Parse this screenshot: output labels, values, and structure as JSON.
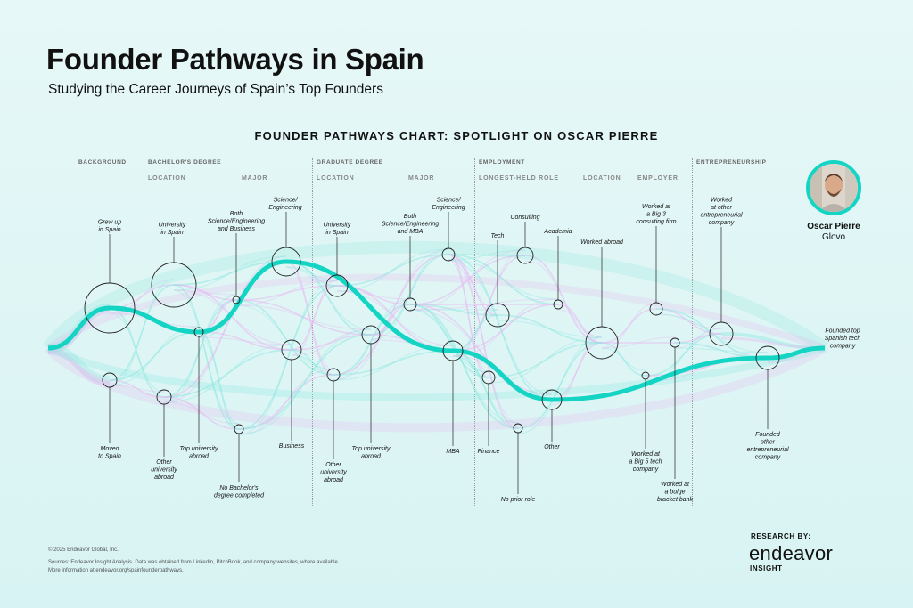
{
  "header": {
    "title": "Founder Pathways in Spain",
    "subtitle": "Studying the Career Journeys of Spain’s Top Founders"
  },
  "chart_data": {
    "type": "sankey-flow",
    "title": "FOUNDER PATHWAYS CHART: SPOTLIGHT ON OSCAR PIERRE",
    "sections": [
      {
        "label": "BACKGROUND",
        "subs": []
      },
      {
        "label": "BACHELOR'S DEGREE",
        "subs": [
          "LOCATION",
          "MAJOR"
        ]
      },
      {
        "label": "GRADUATE DEGREE",
        "subs": [
          "LOCATION",
          "MAJOR"
        ]
      },
      {
        "label": "EMPLOYMENT",
        "subs": [
          "LONGEST-HELD ROLE",
          "LOCATION",
          "EMPLOYER"
        ]
      },
      {
        "label": "ENTREPRENEURSHIP",
        "subs": []
      }
    ],
    "nodes": [
      {
        "id": "grew-up-spain",
        "lines": [
          "Grew up",
          "in Spain"
        ]
      },
      {
        "id": "moved-spain",
        "lines": [
          "Moved",
          "to Spain"
        ]
      },
      {
        "id": "bach-univ-spain",
        "lines": [
          "University",
          "in Spain"
        ]
      },
      {
        "id": "bach-other-univ",
        "lines": [
          "Other",
          "university",
          "abroad"
        ]
      },
      {
        "id": "bach-top-univ",
        "lines": [
          "Top university",
          "abroad"
        ]
      },
      {
        "id": "bach-both",
        "lines": [
          "Both",
          "Science/Engineering",
          "and Business"
        ]
      },
      {
        "id": "bach-sci",
        "lines": [
          "Science/",
          "Engineering"
        ]
      },
      {
        "id": "bach-business",
        "lines": [
          "Business"
        ]
      },
      {
        "id": "bach-none",
        "lines": [
          "No Bachelor's",
          "degree completed"
        ]
      },
      {
        "id": "grad-univ-spain",
        "lines": [
          "University",
          "in Spain"
        ]
      },
      {
        "id": "grad-other-univ",
        "lines": [
          "Other",
          "university",
          "abroad"
        ]
      },
      {
        "id": "grad-top-univ",
        "lines": [
          "Top university",
          "abroad"
        ]
      },
      {
        "id": "grad-both",
        "lines": [
          "Both",
          "Science/Engineering",
          "and MBA"
        ]
      },
      {
        "id": "grad-sci",
        "lines": [
          "Science/",
          "Engineering"
        ]
      },
      {
        "id": "grad-mba",
        "lines": [
          "MBA"
        ]
      },
      {
        "id": "role-consulting",
        "lines": [
          "Consulting"
        ]
      },
      {
        "id": "role-tech",
        "lines": [
          "Tech"
        ]
      },
      {
        "id": "role-academia",
        "lines": [
          "Academia"
        ]
      },
      {
        "id": "role-finance",
        "lines": [
          "Finance"
        ]
      },
      {
        "id": "role-other",
        "lines": [
          "Other"
        ]
      },
      {
        "id": "role-none",
        "lines": [
          "No prior role"
        ]
      },
      {
        "id": "loc-abroad",
        "lines": [
          "Worked abroad"
        ]
      },
      {
        "id": "emp-big3",
        "lines": [
          "Worked at",
          "a Big 3",
          "consulting firm"
        ]
      },
      {
        "id": "emp-big5",
        "lines": [
          "Worked at",
          "a Big 5 tech",
          "company"
        ]
      },
      {
        "id": "emp-bulge",
        "lines": [
          "Worked at",
          "a bulge",
          "bracket bank"
        ]
      },
      {
        "id": "ent-other",
        "lines": [
          "Worked",
          "at other",
          "entrepreneurial",
          "company"
        ]
      },
      {
        "id": "ent-founded-other",
        "lines": [
          "Founded",
          "other",
          "entrepreneurial",
          "company"
        ]
      },
      {
        "id": "ent-founded-top",
        "lines": [
          "Founded top",
          "Spanish tech",
          "company"
        ]
      }
    ],
    "highlight_path": [
      "grew-up-spain",
      "bach-top-univ",
      "bach-sci",
      "grad-mba",
      "role-other",
      "ent-founded-other",
      "ent-founded-top"
    ],
    "colors": {
      "highlight": "#14d4c4",
      "flow_a": "#8ee8e0",
      "flow_b": "#e7b8f0",
      "node": "#222222"
    }
  },
  "founder": {
    "name": "Oscar Pierre",
    "company": "Glovo"
  },
  "footer": {
    "copyright": "© 2025 Endeavor Global, Inc.",
    "sources": "Sources:  Endeavor Insight Analysis. Data was obtained from LinkedIn, PitchBook, and company websites, where available.",
    "more_info_prefix": "More information at ",
    "more_info_link": "endeavor.org/spainfounderpathways."
  },
  "brand": {
    "research_by": "RESEARCH BY:",
    "name": "endeavor",
    "sub": "INSIGHT"
  }
}
